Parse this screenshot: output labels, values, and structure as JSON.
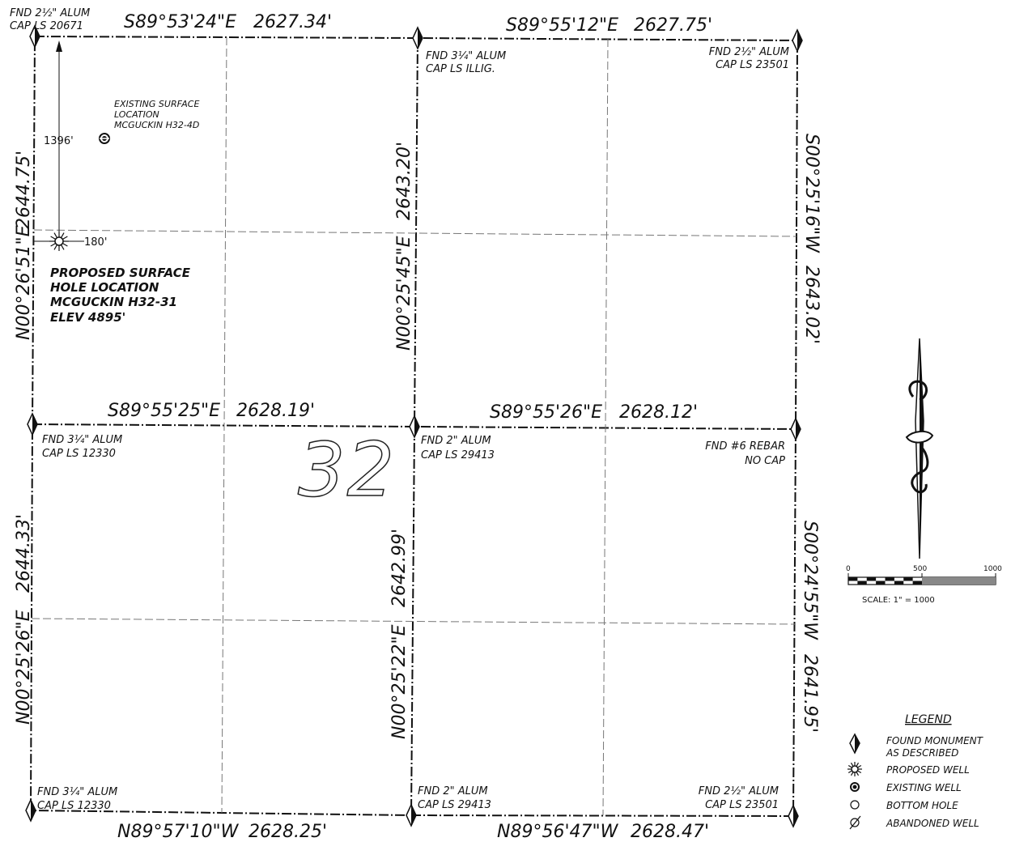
{
  "section_number": "32",
  "bearings": {
    "north_w": {
      "bearing": "S89°53'24\"E",
      "dist": "2627.34'"
    },
    "north_e": {
      "bearing": "S89°55'12\"E",
      "dist": "2627.75'"
    },
    "mid_w": {
      "bearing": "S89°55'25\"E",
      "dist": "2628.19'"
    },
    "mid_e": {
      "bearing": "S89°55'26\"E",
      "dist": "2628.12'"
    },
    "south_w": {
      "bearing": "N89°57'10\"W",
      "dist": "2628.25'"
    },
    "south_e": {
      "bearing": "N89°56'47\"W",
      "dist": "2628.47'"
    },
    "west_n": {
      "bearing": "N00°26'51\"E",
      "dist": "2644.75'"
    },
    "west_s": {
      "bearing": "N00°25'26\"E",
      "dist": "2644.33'"
    },
    "center_n": {
      "bearing": "N00°25'45\"E",
      "dist": "2643.20'"
    },
    "center_s": {
      "bearing": "N00°25'22\"E",
      "dist": "2642.99'"
    },
    "east_n": {
      "bearing": "S00°25'16\"W",
      "dist": "2643.02'"
    },
    "east_s": {
      "bearing": "S00°24'55\"W",
      "dist": "2641.95'"
    }
  },
  "monuments": {
    "nw": [
      "FND 2½\" ALUM",
      "CAP LS 20671"
    ],
    "n_center": [
      "FND 3¼\" ALUM",
      "CAP LS ILLIG."
    ],
    "ne": [
      "FND 2½\" ALUM",
      "CAP LS 23501"
    ],
    "w_mid": [
      "FND 3¼\" ALUM",
      "CAP LS 12330"
    ],
    "center": [
      "FND 2\" ALUM",
      "CAP LS 29413"
    ],
    "e_mid": [
      "FND #6 REBAR",
      "NO CAP"
    ],
    "sw": [
      "FND 3¼\" ALUM",
      "CAP LS 12330"
    ],
    "s_center": [
      "FND 2\" ALUM",
      "CAP LS 29413"
    ],
    "se": [
      "FND 2½\" ALUM",
      "CAP LS 23501"
    ]
  },
  "existing_well": [
    "EXISTING SURFACE",
    "LOCATION",
    "MCGUCKIN H32-4D"
  ],
  "proposed_well": [
    "PROPOSED SURFACE",
    "HOLE LOCATION",
    "MCGUCKIN H32-31",
    "ELEV 4895'"
  ],
  "offsets": {
    "north": "1396'",
    "west": "180'"
  },
  "scale": {
    "ticks": [
      "0",
      "500",
      "1000"
    ],
    "label": "SCALE:  1\" = 1000"
  },
  "legend": {
    "title": "LEGEND",
    "items": [
      [
        "FOUND MONUMENT",
        "AS DESCRIBED"
      ],
      [
        "PROPOSED WELL"
      ],
      [
        "EXISTING WELL"
      ],
      [
        "BOTTOM HOLE"
      ],
      [
        "ABANDONED WELL"
      ]
    ]
  }
}
